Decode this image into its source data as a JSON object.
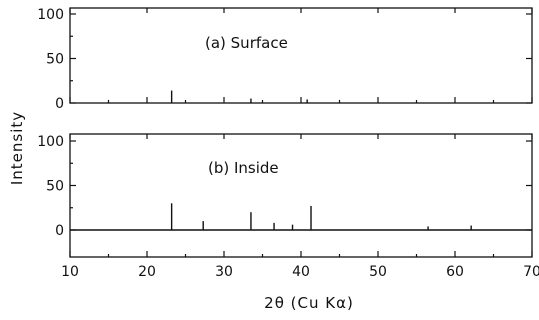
{
  "chart_data": [
    {
      "type": "bar",
      "title": "(a) Surface",
      "ylabel": "Intensity",
      "xlabel": "2θ (Cu Kα)",
      "xlim": [
        10,
        70
      ],
      "ylim": [
        0,
        100
      ],
      "x_ticks": [
        10,
        20,
        30,
        40,
        50,
        60,
        70
      ],
      "y_ticks": [
        0,
        50,
        100
      ],
      "x": [
        23.2,
        33.5,
        40.8
      ],
      "values": [
        14,
        5,
        4
      ]
    },
    {
      "type": "bar",
      "title": "(b) Inside",
      "ylabel": "Intensity",
      "xlabel": "2θ (Cu Kα)",
      "xlim": [
        10,
        70
      ],
      "ylim": [
        -25,
        100
      ],
      "x_ticks": [
        10,
        20,
        30,
        40,
        50,
        60,
        70
      ],
      "y_ticks": [
        0,
        50,
        100
      ],
      "x": [
        23.2,
        27.3,
        33.5,
        36.5,
        38.9,
        41.3,
        56.5,
        62.1
      ],
      "values": [
        30,
        10,
        20,
        8,
        6,
        27,
        4,
        5
      ]
    }
  ],
  "labels": {
    "y_axis": "Intensity",
    "x_axis": "2θ (Cu Kα)"
  }
}
